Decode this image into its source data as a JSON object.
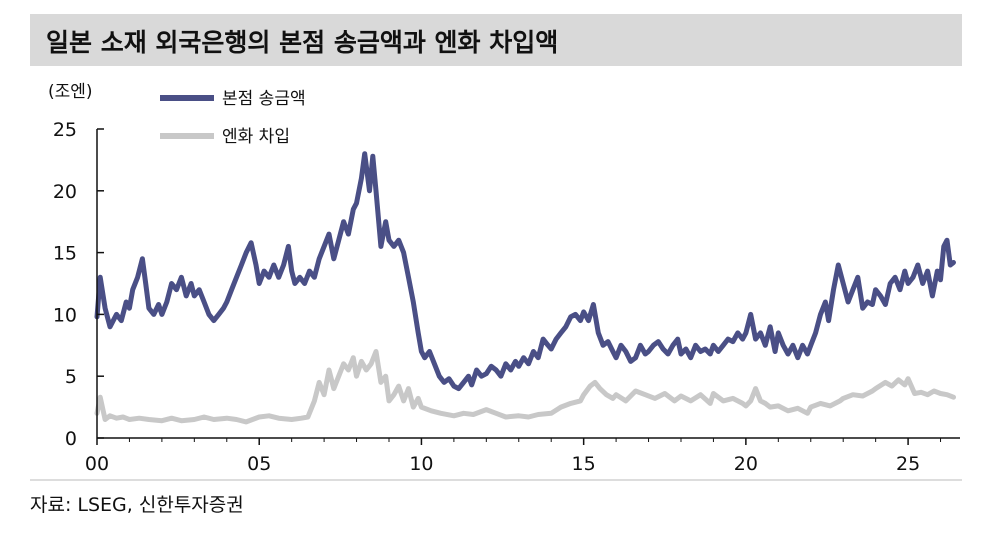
{
  "title": "일본 소재 외국은행의 본점 송금액과 엔화 차입액",
  "source": "자료: LSEG, 신한투자증권",
  "colors": {
    "remit": "#4a4f86",
    "yen": "#c8c8c8",
    "axis": "#111111",
    "title_bg": "#d9d9d9"
  },
  "chart_data": {
    "type": "line",
    "unit_label": "(조엔)",
    "ylim": [
      0,
      25
    ],
    "y_ticks": [
      "0",
      "5",
      "10",
      "15",
      "20",
      "25"
    ],
    "xlim": [
      2000,
      2026.6
    ],
    "x_ticks": [
      {
        "x": 2000,
        "label": "00"
      },
      {
        "x": 2005,
        "label": "05"
      },
      {
        "x": 2010,
        "label": "10"
      },
      {
        "x": 2015,
        "label": "15"
      },
      {
        "x": 2020,
        "label": "20"
      },
      {
        "x": 2025,
        "label": "25"
      }
    ],
    "legend_position": "top-left",
    "grid": false,
    "series": [
      {
        "name": "본점 송금액",
        "points": [
          [
            2000.0,
            9.8
          ],
          [
            2000.1,
            13.0
          ],
          [
            2000.25,
            10.5
          ],
          [
            2000.4,
            9.0
          ],
          [
            2000.6,
            10.0
          ],
          [
            2000.75,
            9.5
          ],
          [
            2000.9,
            11.0
          ],
          [
            2001.0,
            10.5
          ],
          [
            2001.1,
            12.0
          ],
          [
            2001.25,
            13.0
          ],
          [
            2001.4,
            14.5
          ],
          [
            2001.5,
            12.5
          ],
          [
            2001.6,
            10.5
          ],
          [
            2001.75,
            10.0
          ],
          [
            2001.9,
            10.8
          ],
          [
            2002.0,
            10.0
          ],
          [
            2002.15,
            11.0
          ],
          [
            2002.3,
            12.5
          ],
          [
            2002.45,
            12.0
          ],
          [
            2002.6,
            13.0
          ],
          [
            2002.75,
            11.5
          ],
          [
            2002.9,
            12.5
          ],
          [
            2003.0,
            11.5
          ],
          [
            2003.15,
            12.0
          ],
          [
            2003.3,
            11.0
          ],
          [
            2003.45,
            10.0
          ],
          [
            2003.6,
            9.5
          ],
          [
            2003.75,
            10.0
          ],
          [
            2003.9,
            10.5
          ],
          [
            2004.0,
            11.0
          ],
          [
            2004.15,
            12.0
          ],
          [
            2004.3,
            13.0
          ],
          [
            2004.45,
            14.0
          ],
          [
            2004.6,
            15.0
          ],
          [
            2004.75,
            15.8
          ],
          [
            2004.9,
            14.0
          ],
          [
            2005.0,
            12.5
          ],
          [
            2005.15,
            13.5
          ],
          [
            2005.3,
            13.0
          ],
          [
            2005.45,
            14.0
          ],
          [
            2005.6,
            13.0
          ],
          [
            2005.75,
            14.0
          ],
          [
            2005.9,
            15.5
          ],
          [
            2006.0,
            13.5
          ],
          [
            2006.1,
            12.5
          ],
          [
            2006.25,
            13.0
          ],
          [
            2006.4,
            12.5
          ],
          [
            2006.55,
            13.5
          ],
          [
            2006.7,
            13.0
          ],
          [
            2006.85,
            14.5
          ],
          [
            2007.0,
            15.5
          ],
          [
            2007.15,
            16.5
          ],
          [
            2007.3,
            14.5
          ],
          [
            2007.45,
            16.0
          ],
          [
            2007.6,
            17.5
          ],
          [
            2007.75,
            16.5
          ],
          [
            2007.9,
            18.5
          ],
          [
            2008.0,
            19.0
          ],
          [
            2008.15,
            21.0
          ],
          [
            2008.25,
            23.0
          ],
          [
            2008.4,
            20.0
          ],
          [
            2008.5,
            22.8
          ],
          [
            2008.6,
            20.0
          ],
          [
            2008.75,
            15.5
          ],
          [
            2008.9,
            17.5
          ],
          [
            2009.0,
            16.0
          ],
          [
            2009.15,
            15.5
          ],
          [
            2009.3,
            16.0
          ],
          [
            2009.45,
            15.0
          ],
          [
            2009.6,
            13.0
          ],
          [
            2009.75,
            11.0
          ],
          [
            2009.9,
            8.5
          ],
          [
            2010.0,
            7.0
          ],
          [
            2010.1,
            6.5
          ],
          [
            2010.25,
            7.0
          ],
          [
            2010.4,
            6.0
          ],
          [
            2010.55,
            5.0
          ],
          [
            2010.7,
            4.5
          ],
          [
            2010.85,
            4.8
          ],
          [
            2011.0,
            4.2
          ],
          [
            2011.15,
            4.0
          ],
          [
            2011.3,
            4.5
          ],
          [
            2011.45,
            5.0
          ],
          [
            2011.55,
            4.3
          ],
          [
            2011.7,
            5.5
          ],
          [
            2011.85,
            5.0
          ],
          [
            2012.0,
            5.2
          ],
          [
            2012.15,
            5.8
          ],
          [
            2012.3,
            5.5
          ],
          [
            2012.45,
            5.0
          ],
          [
            2012.6,
            6.0
          ],
          [
            2012.75,
            5.5
          ],
          [
            2012.9,
            6.2
          ],
          [
            2013.0,
            5.8
          ],
          [
            2013.15,
            6.5
          ],
          [
            2013.3,
            6.0
          ],
          [
            2013.45,
            7.0
          ],
          [
            2013.6,
            6.5
          ],
          [
            2013.75,
            8.0
          ],
          [
            2013.9,
            7.5
          ],
          [
            2014.0,
            7.2
          ],
          [
            2014.15,
            8.0
          ],
          [
            2014.3,
            8.5
          ],
          [
            2014.45,
            9.0
          ],
          [
            2014.6,
            9.8
          ],
          [
            2014.75,
            10.0
          ],
          [
            2014.9,
            9.5
          ],
          [
            2015.0,
            10.2
          ],
          [
            2015.15,
            9.5
          ],
          [
            2015.3,
            10.8
          ],
          [
            2015.45,
            8.5
          ],
          [
            2015.6,
            7.5
          ],
          [
            2015.75,
            7.8
          ],
          [
            2015.9,
            7.0
          ],
          [
            2016.0,
            6.5
          ],
          [
            2016.15,
            7.5
          ],
          [
            2016.3,
            7.0
          ],
          [
            2016.45,
            6.2
          ],
          [
            2016.6,
            6.5
          ],
          [
            2016.75,
            7.5
          ],
          [
            2016.9,
            6.8
          ],
          [
            2017.0,
            7.0
          ],
          [
            2017.15,
            7.5
          ],
          [
            2017.3,
            7.8
          ],
          [
            2017.45,
            7.2
          ],
          [
            2017.6,
            6.8
          ],
          [
            2017.75,
            7.5
          ],
          [
            2017.9,
            8.0
          ],
          [
            2018.0,
            6.8
          ],
          [
            2018.15,
            7.2
          ],
          [
            2018.3,
            6.5
          ],
          [
            2018.45,
            7.5
          ],
          [
            2018.6,
            7.0
          ],
          [
            2018.75,
            7.2
          ],
          [
            2018.9,
            6.8
          ],
          [
            2019.0,
            7.5
          ],
          [
            2019.15,
            7.0
          ],
          [
            2019.3,
            7.5
          ],
          [
            2019.45,
            8.0
          ],
          [
            2019.6,
            7.8
          ],
          [
            2019.75,
            8.5
          ],
          [
            2019.9,
            8.0
          ],
          [
            2020.0,
            8.5
          ],
          [
            2020.15,
            10.0
          ],
          [
            2020.3,
            8.0
          ],
          [
            2020.45,
            8.5
          ],
          [
            2020.6,
            7.5
          ],
          [
            2020.75,
            9.0
          ],
          [
            2020.9,
            7.0
          ],
          [
            2021.0,
            8.5
          ],
          [
            2021.15,
            7.5
          ],
          [
            2021.3,
            6.8
          ],
          [
            2021.45,
            7.5
          ],
          [
            2021.6,
            6.5
          ],
          [
            2021.75,
            7.5
          ],
          [
            2021.9,
            6.8
          ],
          [
            2022.0,
            7.5
          ],
          [
            2022.15,
            8.5
          ],
          [
            2022.3,
            10.0
          ],
          [
            2022.45,
            11.0
          ],
          [
            2022.55,
            9.5
          ],
          [
            2022.7,
            12.0
          ],
          [
            2022.85,
            14.0
          ],
          [
            2023.0,
            12.5
          ],
          [
            2023.15,
            11.0
          ],
          [
            2023.3,
            12.0
          ],
          [
            2023.45,
            13.0
          ],
          [
            2023.6,
            10.5
          ],
          [
            2023.75,
            11.0
          ],
          [
            2023.9,
            10.8
          ],
          [
            2024.0,
            12.0
          ],
          [
            2024.15,
            11.5
          ],
          [
            2024.3,
            10.8
          ],
          [
            2024.45,
            12.5
          ],
          [
            2024.6,
            13.0
          ],
          [
            2024.75,
            12.0
          ],
          [
            2024.9,
            13.5
          ],
          [
            2025.0,
            12.5
          ],
          [
            2025.15,
            13.0
          ],
          [
            2025.3,
            14.0
          ],
          [
            2025.45,
            12.5
          ],
          [
            2025.6,
            13.5
          ],
          [
            2025.75,
            11.5
          ],
          [
            2025.9,
            13.5
          ],
          [
            2026.0,
            12.8
          ],
          [
            2026.1,
            15.5
          ],
          [
            2026.2,
            16.0
          ],
          [
            2026.3,
            14.0
          ],
          [
            2026.4,
            14.2
          ]
        ]
      },
      {
        "name": "엔화 차입",
        "points": [
          [
            2000.0,
            2.0
          ],
          [
            2000.1,
            3.3
          ],
          [
            2000.25,
            1.5
          ],
          [
            2000.4,
            1.8
          ],
          [
            2000.6,
            1.6
          ],
          [
            2000.8,
            1.7
          ],
          [
            2001.0,
            1.5
          ],
          [
            2001.3,
            1.6
          ],
          [
            2001.6,
            1.5
          ],
          [
            2002.0,
            1.4
          ],
          [
            2002.3,
            1.6
          ],
          [
            2002.6,
            1.4
          ],
          [
            2003.0,
            1.5
          ],
          [
            2003.3,
            1.7
          ],
          [
            2003.6,
            1.5
          ],
          [
            2004.0,
            1.6
          ],
          [
            2004.3,
            1.5
          ],
          [
            2004.6,
            1.3
          ],
          [
            2005.0,
            1.7
          ],
          [
            2005.3,
            1.8
          ],
          [
            2005.6,
            1.6
          ],
          [
            2006.0,
            1.5
          ],
          [
            2006.3,
            1.6
          ],
          [
            2006.5,
            1.7
          ],
          [
            2006.7,
            3.0
          ],
          [
            2006.85,
            4.5
          ],
          [
            2007.0,
            3.5
          ],
          [
            2007.15,
            5.5
          ],
          [
            2007.3,
            4.0
          ],
          [
            2007.45,
            5.0
          ],
          [
            2007.6,
            6.0
          ],
          [
            2007.75,
            5.5
          ],
          [
            2007.9,
            6.5
          ],
          [
            2008.0,
            5.0
          ],
          [
            2008.15,
            6.2
          ],
          [
            2008.3,
            5.5
          ],
          [
            2008.45,
            6.0
          ],
          [
            2008.6,
            7.0
          ],
          [
            2008.75,
            4.5
          ],
          [
            2008.9,
            5.0
          ],
          [
            2009.0,
            3.0
          ],
          [
            2009.15,
            3.5
          ],
          [
            2009.3,
            4.2
          ],
          [
            2009.45,
            3.0
          ],
          [
            2009.6,
            4.0
          ],
          [
            2009.75,
            2.5
          ],
          [
            2009.9,
            3.2
          ],
          [
            2010.0,
            2.5
          ],
          [
            2010.3,
            2.2
          ],
          [
            2010.6,
            2.0
          ],
          [
            2011.0,
            1.8
          ],
          [
            2011.3,
            2.0
          ],
          [
            2011.6,
            1.9
          ],
          [
            2012.0,
            2.3
          ],
          [
            2012.3,
            2.0
          ],
          [
            2012.6,
            1.7
          ],
          [
            2013.0,
            1.8
          ],
          [
            2013.3,
            1.7
          ],
          [
            2013.6,
            1.9
          ],
          [
            2014.0,
            2.0
          ],
          [
            2014.3,
            2.5
          ],
          [
            2014.6,
            2.8
          ],
          [
            2014.9,
            3.0
          ],
          [
            2015.0,
            3.5
          ],
          [
            2015.2,
            4.2
          ],
          [
            2015.35,
            4.5
          ],
          [
            2015.5,
            4.0
          ],
          [
            2015.7,
            3.5
          ],
          [
            2015.9,
            3.2
          ],
          [
            2016.0,
            3.5
          ],
          [
            2016.3,
            3.0
          ],
          [
            2016.6,
            3.8
          ],
          [
            2016.9,
            3.5
          ],
          [
            2017.2,
            3.2
          ],
          [
            2017.5,
            3.6
          ],
          [
            2017.8,
            3.0
          ],
          [
            2018.0,
            3.4
          ],
          [
            2018.3,
            3.0
          ],
          [
            2018.6,
            3.5
          ],
          [
            2018.9,
            2.8
          ],
          [
            2019.0,
            3.6
          ],
          [
            2019.3,
            3.0
          ],
          [
            2019.6,
            3.2
          ],
          [
            2019.9,
            2.8
          ],
          [
            2020.0,
            2.6
          ],
          [
            2020.15,
            3.0
          ],
          [
            2020.3,
            4.0
          ],
          [
            2020.45,
            3.0
          ],
          [
            2020.6,
            2.8
          ],
          [
            2020.75,
            2.5
          ],
          [
            2021.0,
            2.6
          ],
          [
            2021.3,
            2.2
          ],
          [
            2021.6,
            2.4
          ],
          [
            2021.9,
            2.0
          ],
          [
            2022.0,
            2.5
          ],
          [
            2022.3,
            2.8
          ],
          [
            2022.6,
            2.6
          ],
          [
            2022.9,
            3.0
          ],
          [
            2023.0,
            3.2
          ],
          [
            2023.3,
            3.5
          ],
          [
            2023.6,
            3.4
          ],
          [
            2023.9,
            3.8
          ],
          [
            2024.0,
            4.0
          ],
          [
            2024.3,
            4.5
          ],
          [
            2024.5,
            4.2
          ],
          [
            2024.7,
            4.7
          ],
          [
            2024.9,
            4.3
          ],
          [
            2025.0,
            4.8
          ],
          [
            2025.2,
            3.6
          ],
          [
            2025.4,
            3.7
          ],
          [
            2025.6,
            3.5
          ],
          [
            2025.8,
            3.8
          ],
          [
            2026.0,
            3.6
          ],
          [
            2026.2,
            3.5
          ],
          [
            2026.4,
            3.3
          ]
        ]
      }
    ]
  }
}
